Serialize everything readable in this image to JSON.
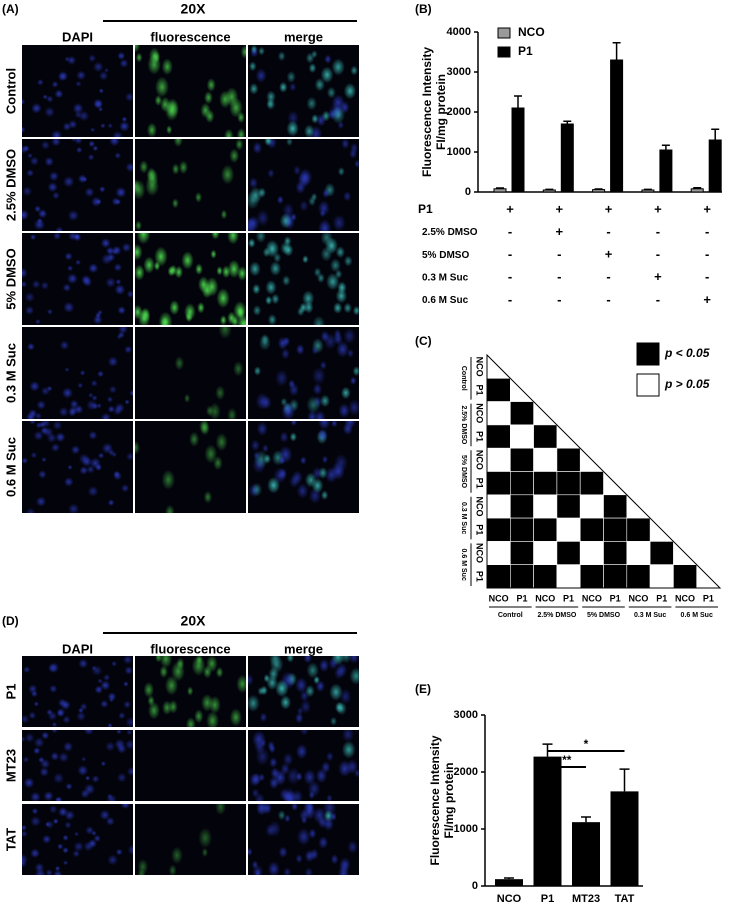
{
  "image_panels": [
    {
      "label": "(A)",
      "magnification": "20X",
      "columns": [
        "DAPI",
        "fluorescence",
        "merge"
      ],
      "rows": [
        "Control",
        "2.5% DMSO",
        "5% DMSO",
        "0.3 M Suc",
        "0.6 M Suc"
      ]
    },
    {
      "label": "(D)",
      "magnification": "20X",
      "columns": [
        "DAPI",
        "fluorescence",
        "merge"
      ],
      "rows": [
        "P1",
        "MT23",
        "TAT"
      ]
    }
  ],
  "chart_data": [
    {
      "type": "bar",
      "panel_label": "(B)",
      "y_label": [
        "Fluorescence Intensity",
        "FI/mg protein"
      ],
      "categories": [
        null,
        null,
        null,
        null,
        null
      ],
      "series": [
        {
          "name": "NCO",
          "color": "#9a9a9a",
          "values": [
            80,
            50,
            60,
            50,
            80
          ],
          "errors": [
            20,
            15,
            15,
            15,
            25
          ]
        },
        {
          "name": "P1",
          "color": "#000000",
          "values": [
            2100,
            1700,
            3300,
            1050,
            1300
          ],
          "errors": [
            300,
            70,
            430,
            120,
            270
          ]
        }
      ],
      "ylim": [
        0,
        4000
      ],
      "yticks": [
        0,
        1000,
        2000,
        3000,
        4000
      ],
      "legend": "upper left",
      "treatments": [
        {
          "name": "P1",
          "marks": [
            "+",
            "+",
            "+",
            "+",
            "+"
          ]
        },
        {
          "name": "2.5% DMSO",
          "marks": [
            "-",
            "+",
            "-",
            "-",
            "-"
          ]
        },
        {
          "name": "5% DMSO",
          "marks": [
            "-",
            "-",
            "+",
            "-",
            "-"
          ]
        },
        {
          "name": "0.3 M Suc",
          "marks": [
            "-",
            "-",
            "-",
            "+",
            "-"
          ]
        },
        {
          "name": "0.6 M Suc",
          "marks": [
            "-",
            "-",
            "-",
            "-",
            "+"
          ]
        }
      ]
    },
    {
      "type": "matrix",
      "panel_label": "(C)",
      "groups": [
        "Control",
        "2.5% DMSO",
        "5% DMSO",
        "0.3 M Suc",
        "0.6 M Suc"
      ],
      "subgroups": [
        "NCO",
        "P1"
      ],
      "values": [
        [],
        [
          true
        ],
        [
          false,
          true
        ],
        [
          true,
          false,
          true
        ],
        [
          false,
          true,
          false,
          true
        ],
        [
          true,
          true,
          true,
          true,
          true
        ],
        [
          false,
          true,
          false,
          true,
          false,
          true
        ],
        [
          true,
          true,
          true,
          false,
          true,
          true,
          true
        ],
        [
          false,
          true,
          false,
          true,
          false,
          true,
          false,
          true
        ],
        [
          true,
          true,
          true,
          false,
          true,
          true,
          true,
          false,
          true
        ]
      ],
      "legend": [
        {
          "label": "p < 0.05",
          "color": "#000000"
        },
        {
          "label": "p > 0.05",
          "color": "#ffffff"
        }
      ]
    },
    {
      "type": "bar",
      "panel_label": "(E)",
      "y_label": [
        "Fluorescence Intensity",
        "FI/mg protein"
      ],
      "categories": [
        "NCO",
        "P1",
        "MT23",
        "TAT"
      ],
      "values": [
        120,
        2270,
        1120,
        1660
      ],
      "errors": [
        20,
        220,
        90,
        390
      ],
      "color": "#000000",
      "ylim": [
        0,
        3000
      ],
      "yticks": [
        0,
        1000,
        2000,
        3000
      ],
      "annotations": [
        {
          "text": "**",
          "between": [
            1,
            2
          ]
        },
        {
          "text": "*",
          "between": [
            1,
            3
          ]
        }
      ]
    }
  ]
}
